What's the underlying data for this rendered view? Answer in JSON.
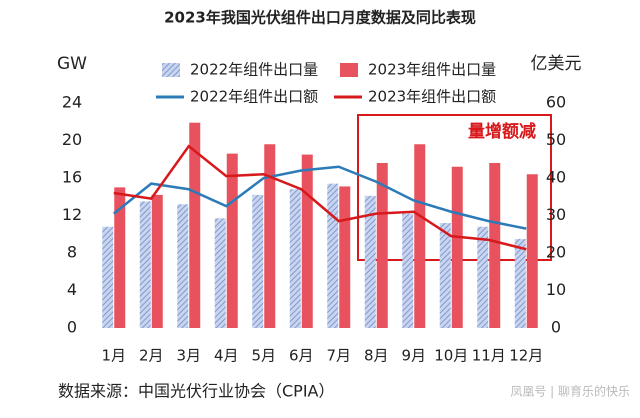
{
  "chart_data": {
    "type": "bar-line",
    "title": "2023年我国光伏组件出口月度数据及同比表现",
    "y_label": "GW",
    "y2_label": "亿美元",
    "annotation": "量增额减",
    "source": "数据来源：中国光伏行业协会（CPIA）",
    "watermark": "凤凰号 | 聊育乐的快乐",
    "categories": [
      "1月",
      "2月",
      "3月",
      "4月",
      "5月",
      "6月",
      "7月",
      "8月",
      "9月",
      "10月",
      "11月",
      "12月"
    ],
    "series": [
      {
        "name": "2022年组件出口量",
        "kind": "bar",
        "color": "#8ea6d9",
        "values": [
          10.8,
          13.5,
          13.2,
          11.7,
          14.2,
          14.8,
          15.4,
          14.1,
          12.2,
          11.2,
          10.8,
          9.5
        ]
      },
      {
        "name": "2023年组件出口量",
        "kind": "bar",
        "color": "#e8525e",
        "values": [
          15.0,
          14.2,
          21.9,
          18.6,
          19.6,
          18.5,
          15.1,
          17.6,
          19.6,
          17.2,
          17.6,
          16.4
        ]
      },
      {
        "name": "2022年组件出口额",
        "kind": "line",
        "axis": "y2",
        "color": "#2b7bb9",
        "values": [
          30.5,
          38.5,
          37,
          32.5,
          40,
          42,
          43,
          39,
          34,
          31,
          28.5,
          26.5
        ]
      },
      {
        "name": "2023年组件出口额",
        "kind": "line",
        "axis": "y2",
        "color": "#d7191c",
        "values": [
          36,
          34.5,
          48.5,
          40.5,
          41,
          37,
          28.5,
          30.5,
          31,
          24.5,
          23.5,
          21
        ]
      }
    ],
    "ylim": [
      0,
      24
    ],
    "yticks": [
      0,
      4,
      8,
      12,
      16,
      20,
      24
    ],
    "y2lim": [
      0,
      60
    ],
    "y2ticks": [
      0,
      10,
      20,
      30,
      40,
      50,
      60
    ]
  }
}
